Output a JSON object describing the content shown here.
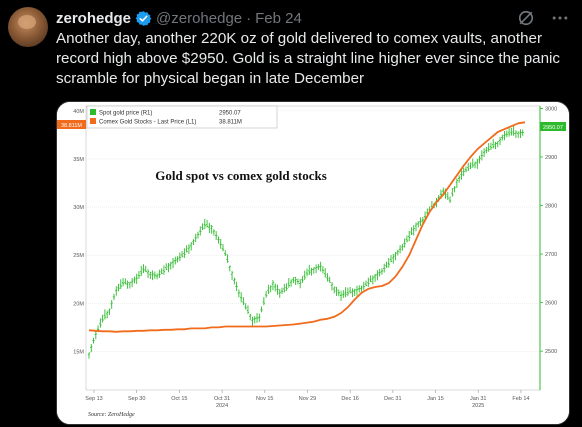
{
  "tweet": {
    "display_name": "zerohedge",
    "handle": "@zerohedge",
    "separator": "·",
    "date": "Feb 24",
    "text": "Another day, another 220K oz of gold delivered to comex vaults, another record high above $2950. Gold is a straight line higher ever since the panic scramble for physical began in late December",
    "verified_color": "#1d9bf0",
    "icons": [
      "grok-icon",
      "more-icon"
    ]
  },
  "chart_data": {
    "type": "line",
    "title": "Gold spot vs comex gold stocks",
    "source": "Source: ZeroHedge",
    "x_labels": [
      "Sep 13",
      "Sep 30",
      "Oct 15",
      "Oct 31",
      "Nov 15",
      "Nov 29",
      "Dec 16",
      "Dec 31",
      "Jan 15",
      "Jan 31",
      "Feb 14"
    ],
    "x_year_labels": [
      {
        "at": "Oct 31",
        "label": "2024"
      },
      {
        "at": "Jan 31",
        "label": "2025"
      }
    ],
    "left_axis": {
      "ticks": [
        "40M",
        "35M",
        "30M",
        "25M",
        "20M",
        "15M"
      ],
      "values": [
        40,
        35,
        30,
        25,
        20,
        15
      ],
      "ylim": [
        11,
        40.5
      ]
    },
    "right_axis": {
      "ticks": [
        "3000",
        "2900",
        "2800",
        "2700",
        "2600",
        "2500"
      ],
      "values": [
        3000,
        2900,
        2800,
        2700,
        2600,
        2500
      ],
      "ylim": [
        2420,
        3005
      ]
    },
    "legend": {
      "position": "top-left",
      "entries": [
        {
          "label": "Spot gold price  (R1)",
          "value": "2950.07",
          "color": "#2dbb2d"
        },
        {
          "label": "Comex Gold Stocks - Last Price  (L1)",
          "value": "38.811M",
          "color": "#f26a1b"
        }
      ]
    },
    "last_value_tags": {
      "left": "38.811M",
      "right": "2950.07"
    },
    "series": [
      {
        "name": "Comex Gold Stocks - Last Price",
        "axis": "left",
        "color": "#f26a1b",
        "values": [
          17.2,
          17.15,
          17.1,
          17.1,
          17.05,
          17.1,
          17.1,
          17.15,
          17.15,
          17.2,
          17.2,
          17.25,
          17.25,
          17.3,
          17.3,
          17.4,
          17.4,
          17.4,
          17.5,
          17.5,
          17.6,
          17.6,
          17.6,
          17.6,
          17.6,
          17.6,
          17.6,
          17.65,
          17.7,
          17.75,
          17.8,
          17.9,
          18,
          18.1,
          18.3,
          18.4,
          18.6,
          19,
          19.6,
          20.4,
          21.1,
          21.5,
          21.7,
          21.8,
          22.1,
          22.8,
          23.8,
          25,
          26.6,
          28.2,
          29.5,
          30.5,
          31.3,
          32.3,
          33.3,
          34.3,
          35.2,
          36,
          36.6,
          37.2,
          37.8,
          38.1,
          38.4,
          38.7,
          38.811
        ]
      },
      {
        "name": "Spot gold price",
        "axis": "right",
        "color": "#2dbb2d",
        "values": [
          2495,
          2535,
          2565,
          2585,
          2625,
          2640,
          2640,
          2650,
          2668,
          2660,
          2655,
          2665,
          2680,
          2690,
          2700,
          2720,
          2740,
          2760,
          2755,
          2730,
          2700,
          2660,
          2620,
          2590,
          2565,
          2570,
          2615,
          2640,
          2620,
          2630,
          2650,
          2640,
          2660,
          2670,
          2675,
          2650,
          2630,
          2615,
          2620,
          2625,
          2630,
          2640,
          2655,
          2665,
          2680,
          2700,
          2715,
          2735,
          2760,
          2770,
          2790,
          2810,
          2830,
          2810,
          2850,
          2870,
          2880,
          2890,
          2910,
          2920,
          2930,
          2945,
          2950,
          2950,
          2950.07
        ]
      }
    ]
  }
}
